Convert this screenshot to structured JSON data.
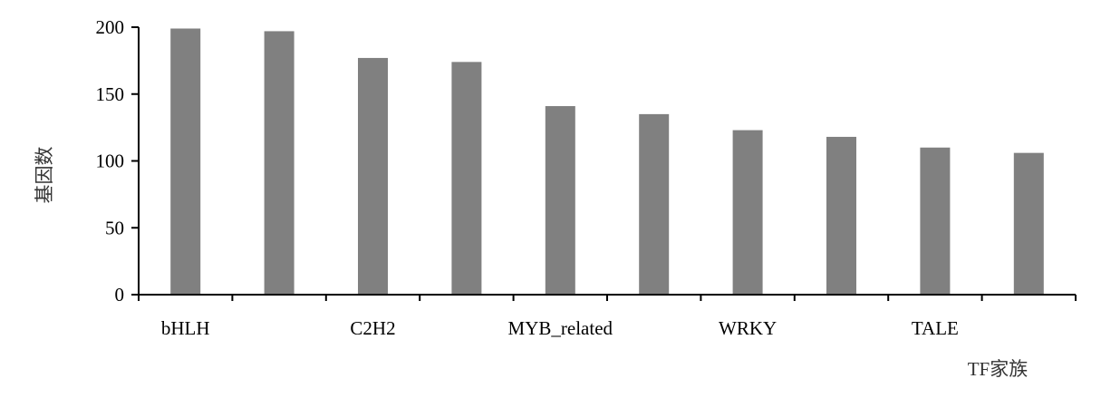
{
  "chart_data": {
    "type": "bar",
    "ylabel": "基因数",
    "xlabel": "TF家族",
    "ylim": [
      0,
      200
    ],
    "yticks": [
      0,
      50,
      100,
      150,
      200
    ],
    "categories": [
      "bHLH",
      "",
      "C2H2",
      "",
      "MYB_related",
      "",
      "WRKY",
      "",
      "TALE",
      ""
    ],
    "values": [
      199,
      197,
      177,
      174,
      141,
      135,
      123,
      118,
      110,
      106
    ],
    "bar_color": "#808080",
    "axis_color": "#000000",
    "grid": false,
    "legend": "none"
  }
}
